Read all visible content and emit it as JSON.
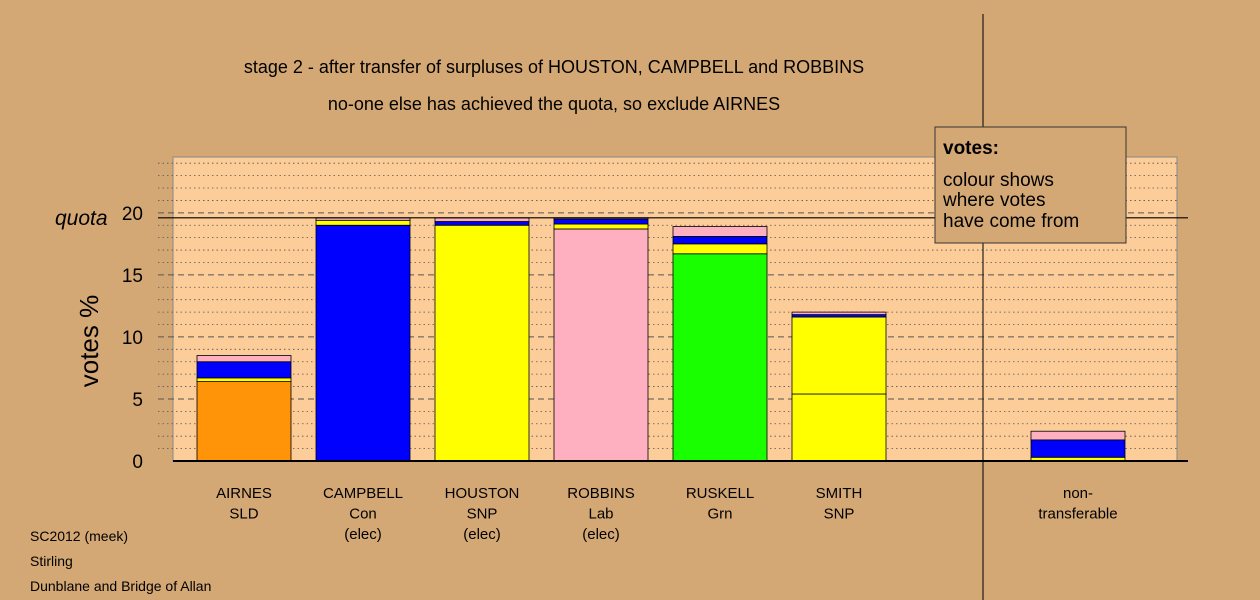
{
  "title_line1": "stage 2 - after transfer of surpluses of HOUSTON, CAMPBELL and ROBBINS",
  "title_line2": "no-one else has achieved the quota, so exclude AIRNES",
  "quota_label": "quota",
  "legend": {
    "heading": "votes:",
    "lines": [
      "colour shows",
      "where votes",
      "have come from"
    ]
  },
  "footer": [
    "SC2012 (meek)",
    "Stirling",
    "Dunblane and Bridge of Allan"
  ],
  "colors": {
    "background": "#d4a875",
    "plot_bg": "#fccc99",
    "SLD": "#ff9408",
    "Con": "#0000ff",
    "SNP": "#ffff00",
    "Lab": "#ffb0c0",
    "Grn": "#1aff00"
  },
  "chart_data": {
    "type": "bar",
    "stacked": true,
    "ylabel": "votes %",
    "ylim": [
      0,
      24.5
    ],
    "yticks": [
      0,
      5,
      10,
      15,
      20
    ],
    "quota": 19.6,
    "grid": "dashed at major ticks, dotted at minor",
    "categories": [
      {
        "label": [
          "AIRNES",
          "SLD"
        ],
        "segments": [
          {
            "source": "SLD",
            "value": 6.4
          },
          {
            "source": "SNP",
            "value": 0.3
          },
          {
            "source": "Con",
            "value": 1.3
          },
          {
            "source": "Lab",
            "value": 0.5
          }
        ]
      },
      {
        "label": [
          "CAMPBELL",
          "Con",
          "(elec)"
        ],
        "segments": [
          {
            "source": "Con",
            "value": 19.0
          },
          {
            "source": "SNP",
            "value": 0.4
          },
          {
            "source": "Lab",
            "value": 0.2
          }
        ]
      },
      {
        "label": [
          "HOUSTON",
          "SNP",
          "(elec)"
        ],
        "segments": [
          {
            "source": "SNP",
            "value": 19.0
          },
          {
            "source": "Con",
            "value": 0.3
          },
          {
            "source": "Lab",
            "value": 0.3
          }
        ]
      },
      {
        "label": [
          "ROBBINS",
          "Lab",
          "(elec)"
        ],
        "segments": [
          {
            "source": "Lab",
            "value": 18.7
          },
          {
            "source": "SNP",
            "value": 0.4
          },
          {
            "source": "Con",
            "value": 0.4
          },
          {
            "source": "Lab",
            "value": 0.1
          }
        ]
      },
      {
        "label": [
          "RUSKELL",
          "Grn"
        ],
        "segments": [
          {
            "source": "Grn",
            "value": 16.7
          },
          {
            "source": "SNP",
            "value": 0.8
          },
          {
            "source": "Con",
            "value": 0.6
          },
          {
            "source": "Lab",
            "value": 0.8
          }
        ]
      },
      {
        "label": [
          "SMITH",
          "SNP"
        ],
        "segments": [
          {
            "source": "SNP",
            "value": 5.4
          },
          {
            "source": "SNP",
            "value": 6.2
          },
          {
            "source": "Con",
            "value": 0.2
          },
          {
            "source": "Lab",
            "value": 0.2
          }
        ]
      }
    ],
    "non_transferable": {
      "label": [
        "non-",
        "transferable"
      ],
      "segments": [
        {
          "source": "SNP",
          "value": 0.3
        },
        {
          "source": "Con",
          "value": 1.4
        },
        {
          "source": "Lab",
          "value": 0.7
        }
      ]
    }
  }
}
